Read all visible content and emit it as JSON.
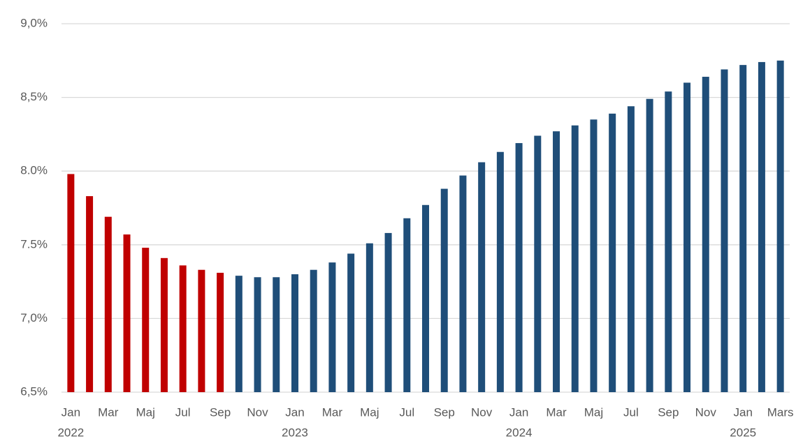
{
  "chart_data": {
    "type": "bar",
    "categories": [
      "Jan",
      null,
      "Mar",
      null,
      "Maj",
      null,
      "Jul",
      null,
      "Sep",
      null,
      "Nov",
      null,
      "Jan",
      null,
      "Mar",
      null,
      "Maj",
      null,
      "Jul",
      null,
      "Sep",
      null,
      "Nov",
      null,
      "Jan",
      null,
      "Mar",
      null,
      "Maj",
      null,
      "Jul",
      null,
      "Sep",
      null,
      "Nov",
      null,
      "Jan",
      null,
      "Mars"
    ],
    "years": [
      "2022",
      null,
      null,
      null,
      null,
      null,
      null,
      null,
      null,
      null,
      null,
      null,
      "2023",
      null,
      null,
      null,
      null,
      null,
      null,
      null,
      null,
      null,
      null,
      null,
      "2024",
      null,
      null,
      null,
      null,
      null,
      null,
      null,
      null,
      null,
      null,
      null,
      "2025",
      null,
      null
    ],
    "values": [
      7.98,
      7.83,
      7.69,
      7.57,
      7.48,
      7.41,
      7.36,
      7.33,
      7.31,
      7.29,
      7.28,
      7.28,
      7.3,
      7.33,
      7.38,
      7.44,
      7.51,
      7.58,
      7.68,
      7.77,
      7.88,
      7.97,
      8.06,
      8.13,
      8.19,
      8.24,
      8.27,
      8.31,
      8.35,
      8.39,
      8.44,
      8.49,
      8.54,
      8.6,
      8.64,
      8.69,
      8.72,
      8.74,
      8.75
    ],
    "colors": [
      "#c00000",
      "#c00000",
      "#c00000",
      "#c00000",
      "#c00000",
      "#c00000",
      "#c00000",
      "#c00000",
      "#c00000",
      "#1f4e79",
      "#1f4e79",
      "#1f4e79",
      "#1f4e79",
      "#1f4e79",
      "#1f4e79",
      "#1f4e79",
      "#1f4e79",
      "#1f4e79",
      "#1f4e79",
      "#1f4e79",
      "#1f4e79",
      "#1f4e79",
      "#1f4e79",
      "#1f4e79",
      "#1f4e79",
      "#1f4e79",
      "#1f4e79",
      "#1f4e79",
      "#1f4e79",
      "#1f4e79",
      "#1f4e79",
      "#1f4e79",
      "#1f4e79",
      "#1f4e79",
      "#1f4e79",
      "#1f4e79",
      "#1f4e79",
      "#1f4e79",
      "#1f4e79"
    ],
    "ylim": [
      6.5,
      9.0
    ],
    "yticks": [
      {
        "value": 6.5,
        "label": "6,5%"
      },
      {
        "value": 7.0,
        "label": "7,0%"
      },
      {
        "value": 7.5,
        "label": "7.5%"
      },
      {
        "value": 8.0,
        "label": "8.0%"
      },
      {
        "value": 8.5,
        "label": "8,5%"
      },
      {
        "value": 9.0,
        "label": "9,0%"
      }
    ],
    "grid": true
  }
}
